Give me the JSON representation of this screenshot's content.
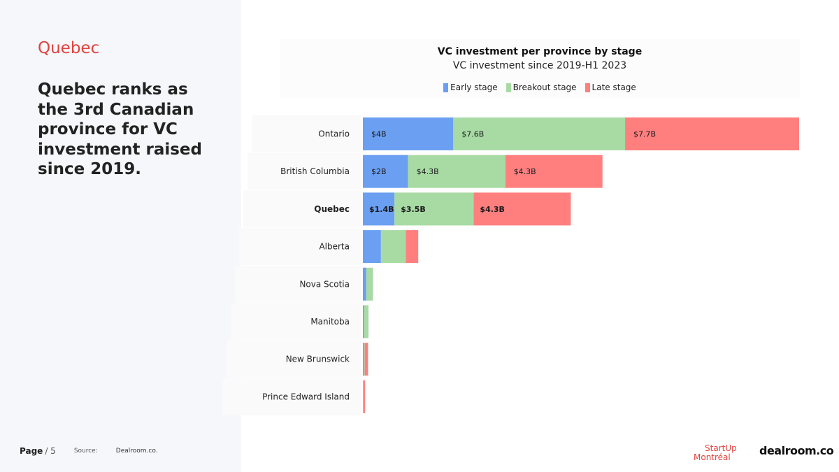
{
  "left": {
    "section_title": "Quebec",
    "headline": "Quebec ranks as the 3rd Canadian province for VC investment raised since 2019."
  },
  "footer": {
    "page_label": "Page",
    "page_total": "/ 5",
    "source_label": "Source:",
    "source_value": "Dealroom.co."
  },
  "logos": {
    "startup_line1": "StartUp",
    "startup_line2": "Montréal",
    "dealroom": "dealroom.co"
  },
  "chart_data": {
    "type": "bar",
    "orientation": "horizontal",
    "stacked": true,
    "title": "VC investment per province by stage",
    "subtitle": "VC investment since 2019-H1 2023",
    "legend_position": "top",
    "highlight_category": "Quebec",
    "categories": [
      "Ontario",
      "British Columbia",
      "Quebec",
      "Alberta",
      "Nova Scotia",
      "Manitoba",
      "New Brunswick",
      "Prince Edward Island"
    ],
    "series": [
      {
        "name": "Early stage",
        "color": "#6b9ff2",
        "values": [
          4.0,
          2.0,
          1.4,
          0.8,
          0.15,
          0.05,
          0.05,
          0.02
        ],
        "labels": [
          "$4B",
          "$2B",
          "$1.4B",
          "",
          "",
          "",
          "",
          ""
        ]
      },
      {
        "name": "Breakout stage",
        "color": "#a8dba4",
        "values": [
          7.6,
          4.3,
          3.5,
          1.1,
          0.3,
          0.2,
          0.03,
          0.02
        ],
        "labels": [
          "$7.6B",
          "$4.3B",
          "$3.5B",
          "",
          "",
          "",
          "",
          ""
        ]
      },
      {
        "name": "Late stage",
        "color": "#ff7f7f",
        "values": [
          7.7,
          4.3,
          4.3,
          0.55,
          0.0,
          0.0,
          0.15,
          0.06
        ],
        "labels": [
          "$7.7B",
          "$4.3B",
          "$4.3B",
          "",
          "",
          "",
          "",
          ""
        ]
      }
    ],
    "xlim": [
      0,
      19.3
    ],
    "unit": "$B"
  }
}
